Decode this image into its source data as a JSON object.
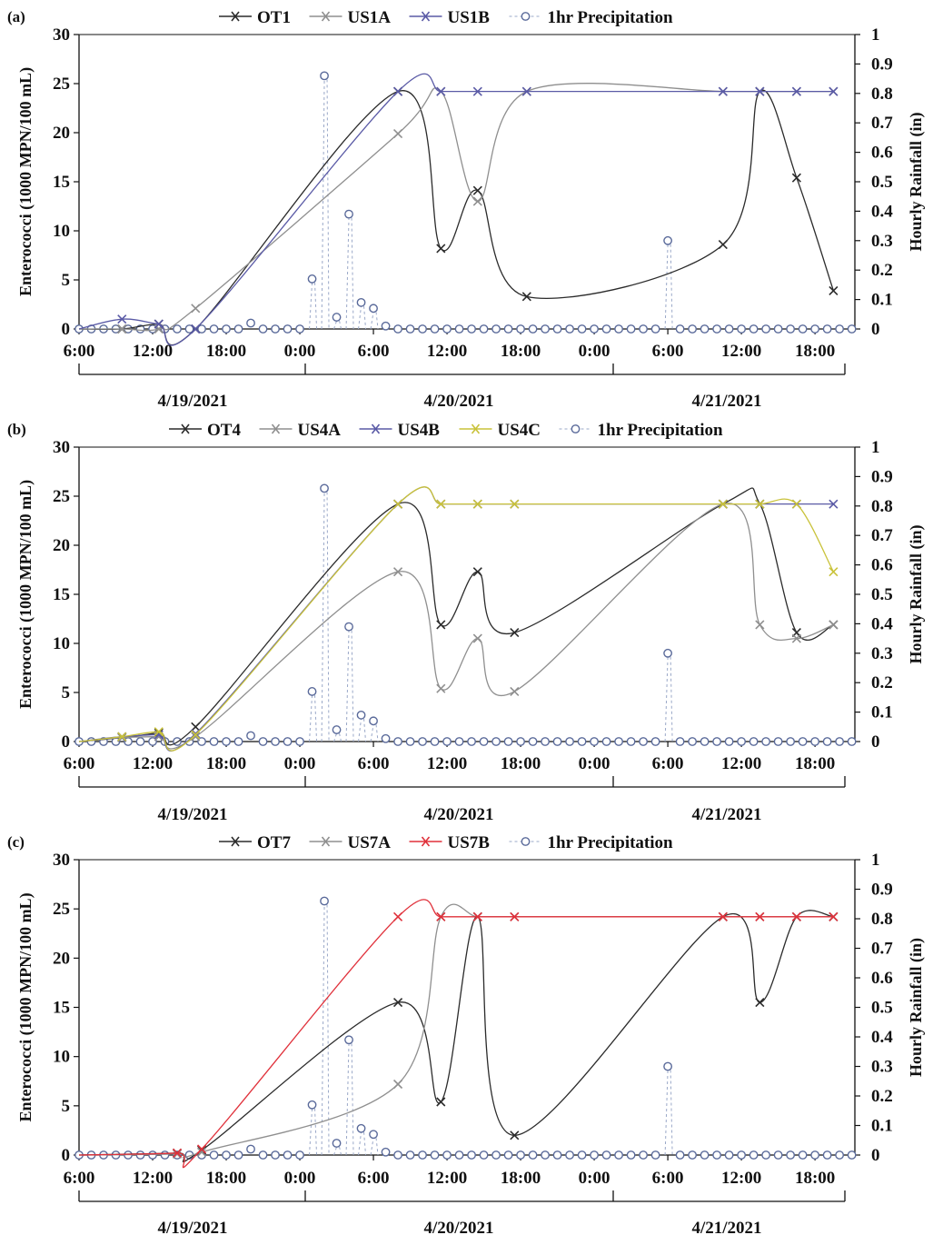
{
  "chart_data": [
    {
      "type": "line",
      "panel_label": "(a)",
      "ylabel": "Enterococci (1000 MPN/100 mL)",
      "y2label": "Hourly Rainfall (in)",
      "ylim": [
        0,
        30
      ],
      "y2lim": [
        0,
        1
      ],
      "yticks": [
        0,
        5,
        10,
        15,
        20,
        25,
        30
      ],
      "y2ticks": [
        "0",
        "0.1",
        "0.2",
        "0.3",
        "0.4",
        "0.5",
        "0.6",
        "0.7",
        "0.8",
        "0.9",
        "1"
      ],
      "xticks": [
        "6:00",
        "12:00",
        "18:00",
        "0:00",
        "6:00",
        "12:00",
        "18:00",
        "0:00",
        "6:00",
        "12:00",
        "18:00"
      ],
      "dates": [
        "4/19/2021",
        "4/20/2021",
        "4/21/2021"
      ],
      "series": [
        {
          "name": "OT1",
          "color": "#2b2b2b",
          "marker": "x",
          "x": [
            9.5,
            12.5,
            15.5,
            32,
            35.5,
            38.5,
            42.5,
            58.5,
            61.5,
            64.5,
            67.5
          ],
          "y": [
            0,
            0.5,
            0,
            24.2,
            8.2,
            14.1,
            3.3,
            8.6,
            24.2,
            15.4,
            3.9
          ]
        },
        {
          "name": "US1A",
          "color": "#8f8f8f",
          "marker": "x",
          "x": [
            9.5,
            12.5,
            15.5,
            32,
            35.5,
            38.5,
            42.5,
            58.5,
            61.5,
            64.5,
            67.5
          ],
          "y": [
            0,
            0,
            2.1,
            19.9,
            24.2,
            13.0,
            24.2,
            24.2,
            24.2,
            24.2,
            24.2
          ]
        },
        {
          "name": "US1B",
          "color": "#5a5aa6",
          "marker": "x",
          "x": [
            9.5,
            12.5,
            15.5,
            32,
            35.5,
            38.5,
            42.5,
            58.5,
            61.5,
            64.5,
            67.5
          ],
          "y": [
            1.0,
            0.5,
            0,
            24.2,
            24.2,
            24.2,
            24.2,
            24.2,
            24.2,
            24.2,
            24.2
          ]
        }
      ],
      "precip_series_name": "1hr Precipitation",
      "precipitation": [
        {
          "x": 25,
          "y": 0.17
        },
        {
          "x": 26,
          "y": 0.86
        },
        {
          "x": 27,
          "y": 0.04
        },
        {
          "x": 28,
          "y": 0.39
        },
        {
          "x": 29,
          "y": 0.09
        },
        {
          "x": 30,
          "y": 0.07
        },
        {
          "x": 31,
          "y": 0.01
        },
        {
          "x": 20,
          "y": 0.02
        },
        {
          "x": 54,
          "y": 0.3
        }
      ]
    },
    {
      "type": "line",
      "panel_label": "(b)",
      "ylabel": "Enterococci (1000 MPN/100 mL)",
      "y2label": "Hourly Rainfall (in)",
      "ylim": [
        0,
        30
      ],
      "y2lim": [
        0,
        1
      ],
      "yticks": [
        0,
        5,
        10,
        15,
        20,
        25,
        30
      ],
      "y2ticks": [
        "0",
        "0.1",
        "0.2",
        "0.3",
        "0.4",
        "0.5",
        "0.6",
        "0.7",
        "0.8",
        "0.9",
        "1"
      ],
      "xticks": [
        "6:00",
        "12:00",
        "18:00",
        "0:00",
        "6:00",
        "12:00",
        "18:00",
        "0:00",
        "6:00",
        "12:00",
        "18:00"
      ],
      "dates": [
        "4/19/2021",
        "4/20/2021",
        "4/21/2021"
      ],
      "series": [
        {
          "name": "OT4",
          "color": "#2b2b2b",
          "marker": "x",
          "x": [
            9.5,
            12.5,
            15.5,
            32,
            35.5,
            38.5,
            41.5,
            58.5,
            61.5,
            64.5,
            67.5
          ],
          "y": [
            0.4,
            0.9,
            1.5,
            24.2,
            11.9,
            17.3,
            11.1,
            24.2,
            24.2,
            11.1,
            11.9
          ]
        },
        {
          "name": "US4A",
          "color": "#8f8f8f",
          "marker": "x",
          "x": [
            9.5,
            12.5,
            15.5,
            32,
            35.5,
            38.5,
            41.5,
            58.5,
            61.5,
            64.5,
            67.5
          ],
          "y": [
            0.4,
            0.5,
            0.5,
            17.3,
            5.4,
            10.5,
            5.1,
            24.2,
            11.9,
            10.5,
            11.9
          ]
        },
        {
          "name": "US4B",
          "color": "#5a5aa6",
          "marker": "x",
          "x": [
            9.5,
            12.5,
            15.5,
            32,
            35.5,
            38.5,
            41.5,
            58.5,
            61.5,
            64.5,
            67.5
          ],
          "y": [
            0.5,
            0.7,
            0.8,
            24.2,
            24.2,
            24.2,
            24.2,
            24.2,
            24.2,
            24.2,
            24.2
          ]
        },
        {
          "name": "US4C",
          "color": "#c9c23a",
          "marker": "x",
          "x": [
            9.5,
            12.5,
            15.5,
            32,
            35.5,
            38.5,
            41.5,
            58.5,
            61.5,
            64.5,
            67.5
          ],
          "y": [
            0.5,
            1.0,
            0.7,
            24.2,
            24.2,
            24.2,
            24.2,
            24.2,
            24.2,
            24.2,
            17.3
          ]
        }
      ],
      "precip_series_name": "1hr Precipitation",
      "precipitation": [
        {
          "x": 25,
          "y": 0.17
        },
        {
          "x": 26,
          "y": 0.86
        },
        {
          "x": 27,
          "y": 0.04
        },
        {
          "x": 28,
          "y": 0.39
        },
        {
          "x": 29,
          "y": 0.09
        },
        {
          "x": 30,
          "y": 0.07
        },
        {
          "x": 31,
          "y": 0.01
        },
        {
          "x": 20,
          "y": 0.02
        },
        {
          "x": 54,
          "y": 0.3
        }
      ]
    },
    {
      "type": "line",
      "panel_label": "(c)",
      "ylabel": "Enterococci (1000 MPN/100 mL)",
      "y2label": "Hourly Rainfall (in)",
      "ylim": [
        0,
        30
      ],
      "y2lim": [
        0,
        1
      ],
      "yticks": [
        0,
        5,
        10,
        15,
        20,
        25,
        30
      ],
      "y2ticks": [
        "0",
        "0.1",
        "0.2",
        "0.3",
        "0.4",
        "0.5",
        "0.6",
        "0.7",
        "0.8",
        "0.9",
        "1"
      ],
      "xticks": [
        "6:00",
        "12:00",
        "18:00",
        "0:00",
        "6:00",
        "12:00",
        "18:00",
        "0:00",
        "6:00",
        "12:00",
        "18:00"
      ],
      "dates": [
        "4/19/2021",
        "4/20/2021",
        "4/21/2021"
      ],
      "series": [
        {
          "name": "OT7",
          "color": "#2b2b2b",
          "marker": "x",
          "x": [
            14,
            16,
            32,
            35.5,
            38.5,
            41.5,
            58.5,
            61.5,
            64.5,
            67.5
          ],
          "y": [
            0.2,
            0.5,
            15.5,
            5.4,
            24.2,
            2.0,
            24.2,
            15.5,
            24.2,
            24.2
          ]
        },
        {
          "name": "US7A",
          "color": "#8f8f8f",
          "marker": "x",
          "x": [
            14,
            16,
            32,
            35.5,
            38.5,
            41.5,
            58.5,
            61.5,
            64.5,
            67.5
          ],
          "y": [
            0.1,
            0.3,
            7.2,
            24.2,
            24.2,
            24.2,
            24.2,
            24.2,
            24.2,
            24.2
          ]
        },
        {
          "name": "US7B",
          "color": "#e0303a",
          "marker": "x",
          "x": [
            14,
            16,
            32,
            35.5,
            38.5,
            41.5,
            58.5,
            61.5,
            64.5,
            67.5
          ],
          "y": [
            0.2,
            0.6,
            24.2,
            24.2,
            24.2,
            24.2,
            24.2,
            24.2,
            24.2,
            24.2
          ]
        }
      ],
      "precip_series_name": "1hr Precipitation",
      "precipitation": [
        {
          "x": 25,
          "y": 0.17
        },
        {
          "x": 26,
          "y": 0.86
        },
        {
          "x": 27,
          "y": 0.04
        },
        {
          "x": 28,
          "y": 0.39
        },
        {
          "x": 29,
          "y": 0.09
        },
        {
          "x": 30,
          "y": 0.07
        },
        {
          "x": 31,
          "y": 0.01
        },
        {
          "x": 20,
          "y": 0.02
        },
        {
          "x": 54,
          "y": 0.3
        }
      ]
    }
  ],
  "colors": {
    "precip": "#5a6a9a",
    "axis": "#111111"
  }
}
